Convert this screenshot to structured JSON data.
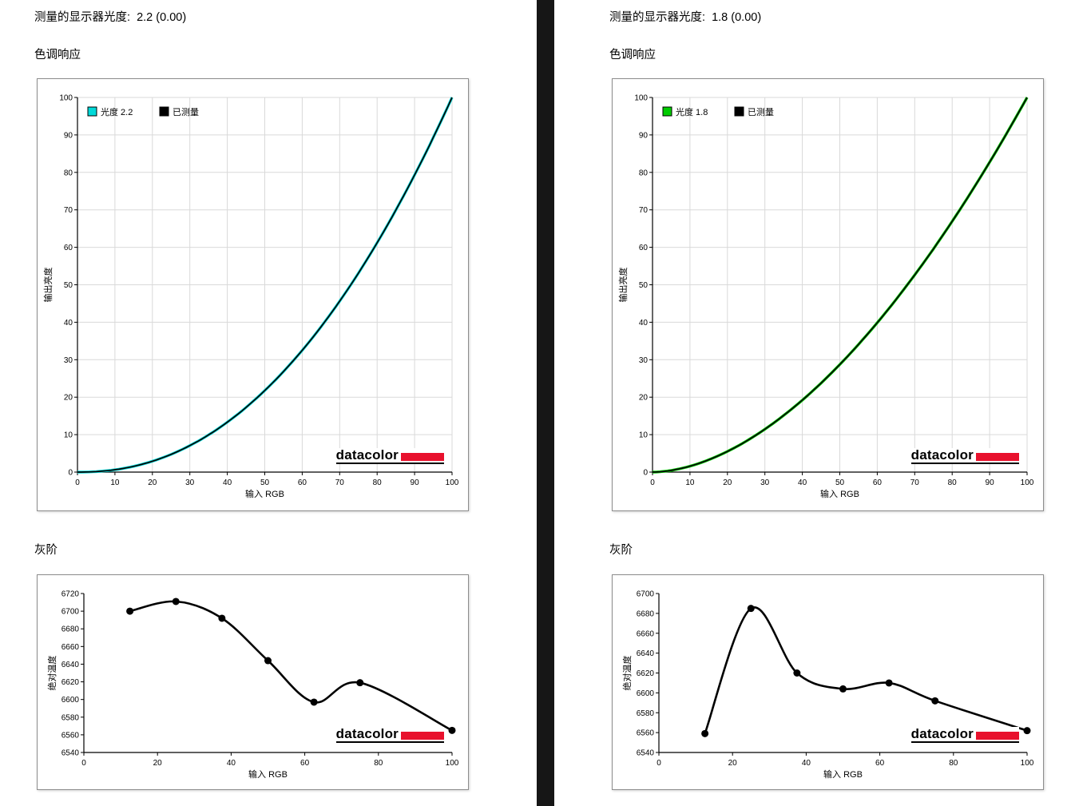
{
  "divider_color": "#161616",
  "logo": {
    "text": "datacolor",
    "bar_color": "#e8112d"
  },
  "panels": [
    {
      "title": "测量的显示器光度:  2.2 (0.00)",
      "sections": {
        "tone": "色调响应",
        "gray": "灰阶"
      }
    },
    {
      "title": "测量的显示器光度:  1.8 (0.00)",
      "sections": {
        "tone": "色调响应",
        "gray": "灰阶"
      }
    }
  ],
  "chart_data": [
    {
      "type": "line",
      "panel": "left",
      "xlabel": "输入 RGB",
      "ylabel": "输出亮度",
      "xlim": [
        0,
        100
      ],
      "ylim": [
        0,
        100
      ],
      "xticks": [
        0,
        10,
        20,
        30,
        40,
        50,
        60,
        70,
        80,
        90,
        100
      ],
      "yticks": [
        0,
        10,
        20,
        30,
        40,
        50,
        60,
        70,
        80,
        90,
        100
      ],
      "grid": true,
      "legend_position": "top-left",
      "legend": [
        {
          "label": "光度 2.2",
          "color": "#00d9d9"
        },
        {
          "label": "已测量",
          "color": "#000000"
        }
      ],
      "series": [
        {
          "name": "光度 2.2",
          "kind": "gamma",
          "gamma": 2.2,
          "color": "#00d9d9",
          "width": 3.4
        },
        {
          "name": "已测量",
          "kind": "gamma",
          "gamma": 2.2,
          "color": "#000000",
          "width": 1.7
        }
      ]
    },
    {
      "type": "scatter-line",
      "panel": "left",
      "xlabel": "输入 RGB",
      "ylabel": "绝对温度",
      "xlim": [
        0,
        100
      ],
      "ylim": [
        6540,
        6720
      ],
      "xticks": [
        0,
        20,
        40,
        60,
        80,
        100
      ],
      "yticks": [
        6540,
        6560,
        6580,
        6600,
        6620,
        6640,
        6660,
        6680,
        6700,
        6720
      ],
      "grid": false,
      "series": [
        {
          "name": "已测量",
          "kind": "spline",
          "color": "#000000",
          "width": 2.6,
          "markers": true,
          "marker_radius": 4.5,
          "x": [
            12.5,
            25,
            37.5,
            50,
            62.5,
            75,
            100
          ],
          "y": [
            6700,
            6711,
            6692,
            6644,
            6597,
            6619,
            6565
          ]
        }
      ]
    },
    {
      "type": "line",
      "panel": "right",
      "xlabel": "输入 RGB",
      "ylabel": "输出亮度",
      "xlim": [
        0,
        100
      ],
      "ylim": [
        0,
        100
      ],
      "xticks": [
        0,
        10,
        20,
        30,
        40,
        50,
        60,
        70,
        80,
        90,
        100
      ],
      "yticks": [
        0,
        10,
        20,
        30,
        40,
        50,
        60,
        70,
        80,
        90,
        100
      ],
      "grid": true,
      "legend_position": "top-left",
      "legend": [
        {
          "label": "光度 1.8",
          "color": "#00cc00"
        },
        {
          "label": "已测量",
          "color": "#000000"
        }
      ],
      "series": [
        {
          "name": "光度 1.8",
          "kind": "gamma",
          "gamma": 1.8,
          "color": "#00cc00",
          "width": 3.4
        },
        {
          "name": "已测量",
          "kind": "gamma",
          "gamma": 1.8,
          "color": "#000000",
          "width": 1.7
        }
      ]
    },
    {
      "type": "scatter-line",
      "panel": "right",
      "xlabel": "输入 RGB",
      "ylabel": "绝对温度",
      "xlim": [
        0,
        100
      ],
      "ylim": [
        6540,
        6700
      ],
      "xticks": [
        0,
        20,
        40,
        60,
        80,
        100
      ],
      "yticks": [
        6540,
        6560,
        6580,
        6600,
        6620,
        6640,
        6660,
        6680,
        6700
      ],
      "grid": false,
      "series": [
        {
          "name": "已测量",
          "kind": "spline",
          "color": "#000000",
          "width": 2.6,
          "markers": true,
          "marker_radius": 4.5,
          "x": [
            12.5,
            25,
            37.5,
            50,
            62.5,
            75,
            100
          ],
          "y": [
            6559,
            6685,
            6620,
            6604,
            6610,
            6592,
            6562
          ]
        }
      ]
    }
  ]
}
